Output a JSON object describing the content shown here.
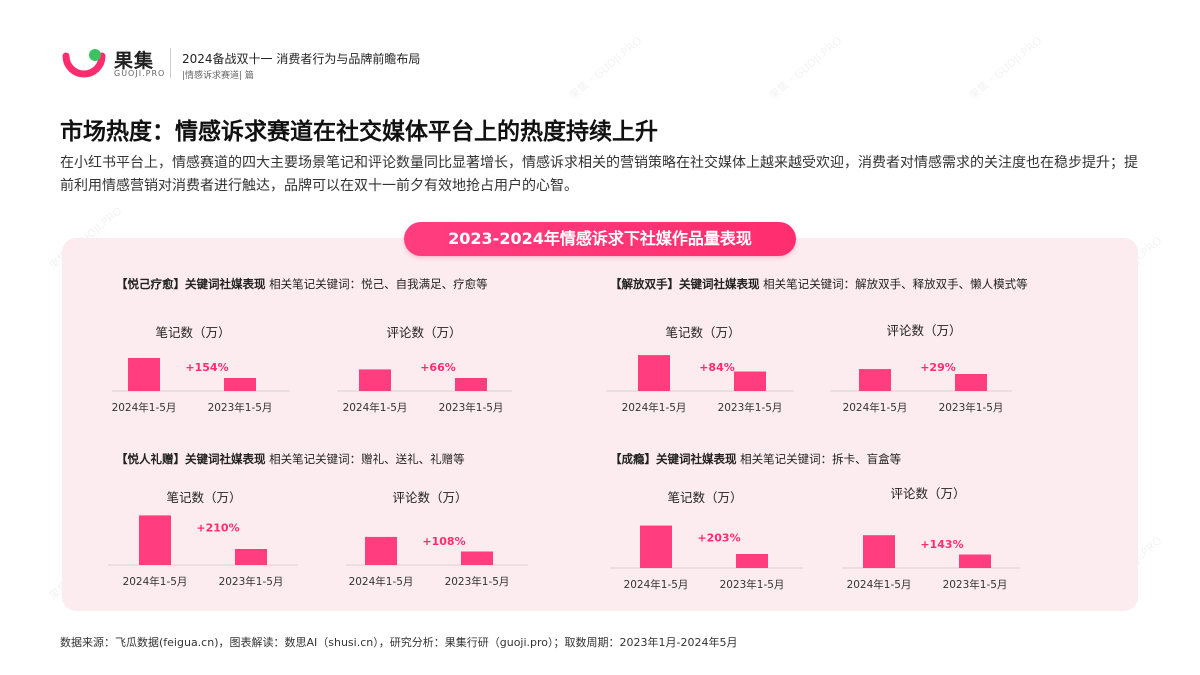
{
  "header": {
    "brand_name": "果集",
    "brand_sub": "GUOJI.PRO",
    "report_title": "2024备战双十一 消费者行为与品牌前瞻布局",
    "report_sub": "|情感诉求赛道| 篇"
  },
  "page_title": "市场热度：情感诉求赛道在社交媒体平台上的热度持续上升",
  "intro": "在小红书平台上，情感赛道的四大主要场景笔记和评论数量同比显著增长，情感诉求相关的营销策略在社交媒体上越来越受欢迎，消费者对情感需求的关注度也在稳步提升；提前利用情感营销对消费者进行触达，品牌可以在双十一前夕有效地抢占用户的心智。",
  "banner": "2023-2024年情感诉求下社媒作品量表现",
  "sections": [
    {
      "heading_bold": "【悦己疗愈】关键词社媒表现",
      "heading_rest": "相关笔记关键词：悦己、自我满足、疗愈等"
    },
    {
      "heading_bold": "【解放双手】关键词社媒表现",
      "heading_rest": "相关笔记关键词：解放双手、释放双手、懒人模式等"
    },
    {
      "heading_bold": "【悦人礼赠】关键词社媒表现",
      "heading_rest": "相关笔记关键词：赠礼、送礼、礼赠等"
    },
    {
      "heading_bold": "【成瘾】关键词社媒表现",
      "heading_rest": "相关笔记关键词：拆卡、盲盒等"
    }
  ],
  "source": "数据来源：飞瓜数据(feigua.cn)，图表解读：数思AI（shusi.cn），研究分析：果集行研（guoji.pro）；取数周期：2023年1月-2024年5月",
  "colors": {
    "accent": "#ff2d6f",
    "bar": "#ff3d7f",
    "panel": "#fcecef"
  },
  "chart_data": [
    {
      "type": "bar",
      "title": "笔记数（万）",
      "categories": [
        "2024年1-5月",
        "2023年1-5月"
      ],
      "values": [
        2.54,
        1.0
      ],
      "annotation": "+154%"
    },
    {
      "type": "bar",
      "title": "评论数（万）",
      "categories": [
        "2024年1-5月",
        "2023年1-5月"
      ],
      "values": [
        1.66,
        1.0
      ],
      "annotation": "+66%"
    },
    {
      "type": "bar",
      "title": "笔记数（万）",
      "categories": [
        "2024年1-5月",
        "2023年1-5月"
      ],
      "values": [
        1.84,
        1.0
      ],
      "annotation": "+84%"
    },
    {
      "type": "bar",
      "title": "评论数（万）",
      "categories": [
        "2024年1-5月",
        "2023年1-5月"
      ],
      "values": [
        1.29,
        1.0
      ],
      "annotation": "+29%"
    },
    {
      "type": "bar",
      "title": "笔记数（万）",
      "categories": [
        "2024年1-5月",
        "2023年1-5月"
      ],
      "values": [
        3.1,
        1.0
      ],
      "annotation": "+210%"
    },
    {
      "type": "bar",
      "title": "评论数（万）",
      "categories": [
        "2024年1-5月",
        "2023年1-5月"
      ],
      "values": [
        2.08,
        1.0
      ],
      "annotation": "+108%"
    },
    {
      "type": "bar",
      "title": "笔记数（万）",
      "categories": [
        "2024年1-5月",
        "2023年1-5月"
      ],
      "values": [
        3.03,
        1.0
      ],
      "annotation": "+203%"
    },
    {
      "type": "bar",
      "title": "评论数（万）",
      "categories": [
        "2024年1-5月",
        "2023年1-5月"
      ],
      "values": [
        2.43,
        1.0
      ],
      "annotation": "+143%"
    }
  ]
}
